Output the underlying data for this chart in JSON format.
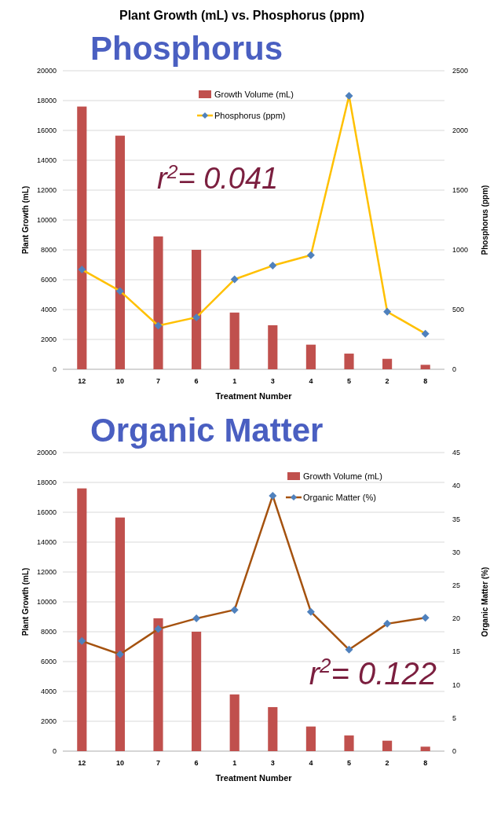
{
  "chart_data": [
    {
      "type": "bar",
      "title": "Plant Growth  (mL) vs. Phosphorus (ppm)",
      "subtitle": "Phosphorus",
      "xlabel": "Treatment Number",
      "ylabel": "Plant Growth (mL)",
      "y2label": "Phosphorus (ppm)",
      "categories": [
        "12",
        "10",
        "7",
        "6",
        "1",
        "3",
        "4",
        "5",
        "2",
        "8"
      ],
      "series": [
        {
          "name": "Growth Volume (mL)",
          "color": "#c0504d",
          "values": [
            17600,
            15650,
            8900,
            8000,
            3800,
            2950,
            1650,
            1050,
            700,
            300
          ]
        },
        {
          "name": "Phosphorus (ppm)",
          "type": "line",
          "axis": "y2",
          "color": "#ffc000",
          "marker": "diamond",
          "values": [
            835,
            655,
            365,
            435,
            753,
            868,
            956,
            2289,
            482,
            298
          ]
        }
      ],
      "ylim": [
        0,
        20000
      ],
      "yticks": [
        0,
        2000,
        4000,
        6000,
        8000,
        10000,
        12000,
        14000,
        16000,
        18000,
        20000
      ],
      "y2lim": [
        0,
        2500
      ],
      "y2ticks": [
        0,
        500,
        1000,
        1500,
        2000,
        2500
      ],
      "grid": "y",
      "legend": "top",
      "annotations": [
        "r$^{2}$= 0.041"
      ]
    },
    {
      "type": "bar",
      "subtitle": "Organic Matter",
      "xlabel": "Treatment Number",
      "ylabel": "Plant Growth (mL)",
      "y2label": "Organic Matter (%)",
      "categories": [
        "12",
        "10",
        "7",
        "6",
        "1",
        "3",
        "4",
        "5",
        "2",
        "8"
      ],
      "series": [
        {
          "name": "Growth Volume (mL)",
          "color": "#c0504d",
          "values": [
            17600,
            15650,
            8900,
            8000,
            3800,
            2950,
            1650,
            1050,
            700,
            300
          ]
        },
        {
          "name": "Organic Matter (%)",
          "type": "line",
          "axis": "y2",
          "color": "#a5520f",
          "marker": "diamond",
          "values": [
            16.6,
            14.6,
            18.4,
            20.0,
            21.3,
            38.5,
            21.0,
            15.3,
            19.2,
            20.1
          ]
        }
      ],
      "ylim": [
        0,
        20000
      ],
      "yticks": [
        0,
        2000,
        4000,
        6000,
        8000,
        10000,
        12000,
        14000,
        16000,
        18000,
        20000
      ],
      "y2lim": [
        0,
        45
      ],
      "y2ticks": [
        0,
        5,
        10,
        15,
        20,
        25,
        30,
        35,
        40,
        45
      ],
      "grid": "y",
      "legend": "top right",
      "annotations": [
        "r$^{2}$= 0.122"
      ]
    }
  ]
}
